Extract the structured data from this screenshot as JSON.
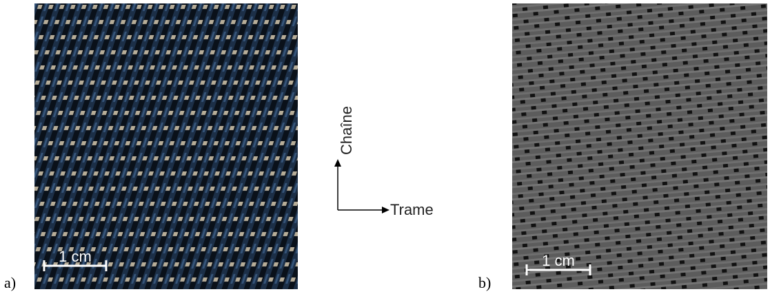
{
  "panels": [
    {
      "label": "a)",
      "scale_bar": "1 cm"
    },
    {
      "label": "b)",
      "scale_bar": "1 cm"
    }
  ],
  "axes": {
    "warp": "Chaîne",
    "weft": "Trame"
  }
}
